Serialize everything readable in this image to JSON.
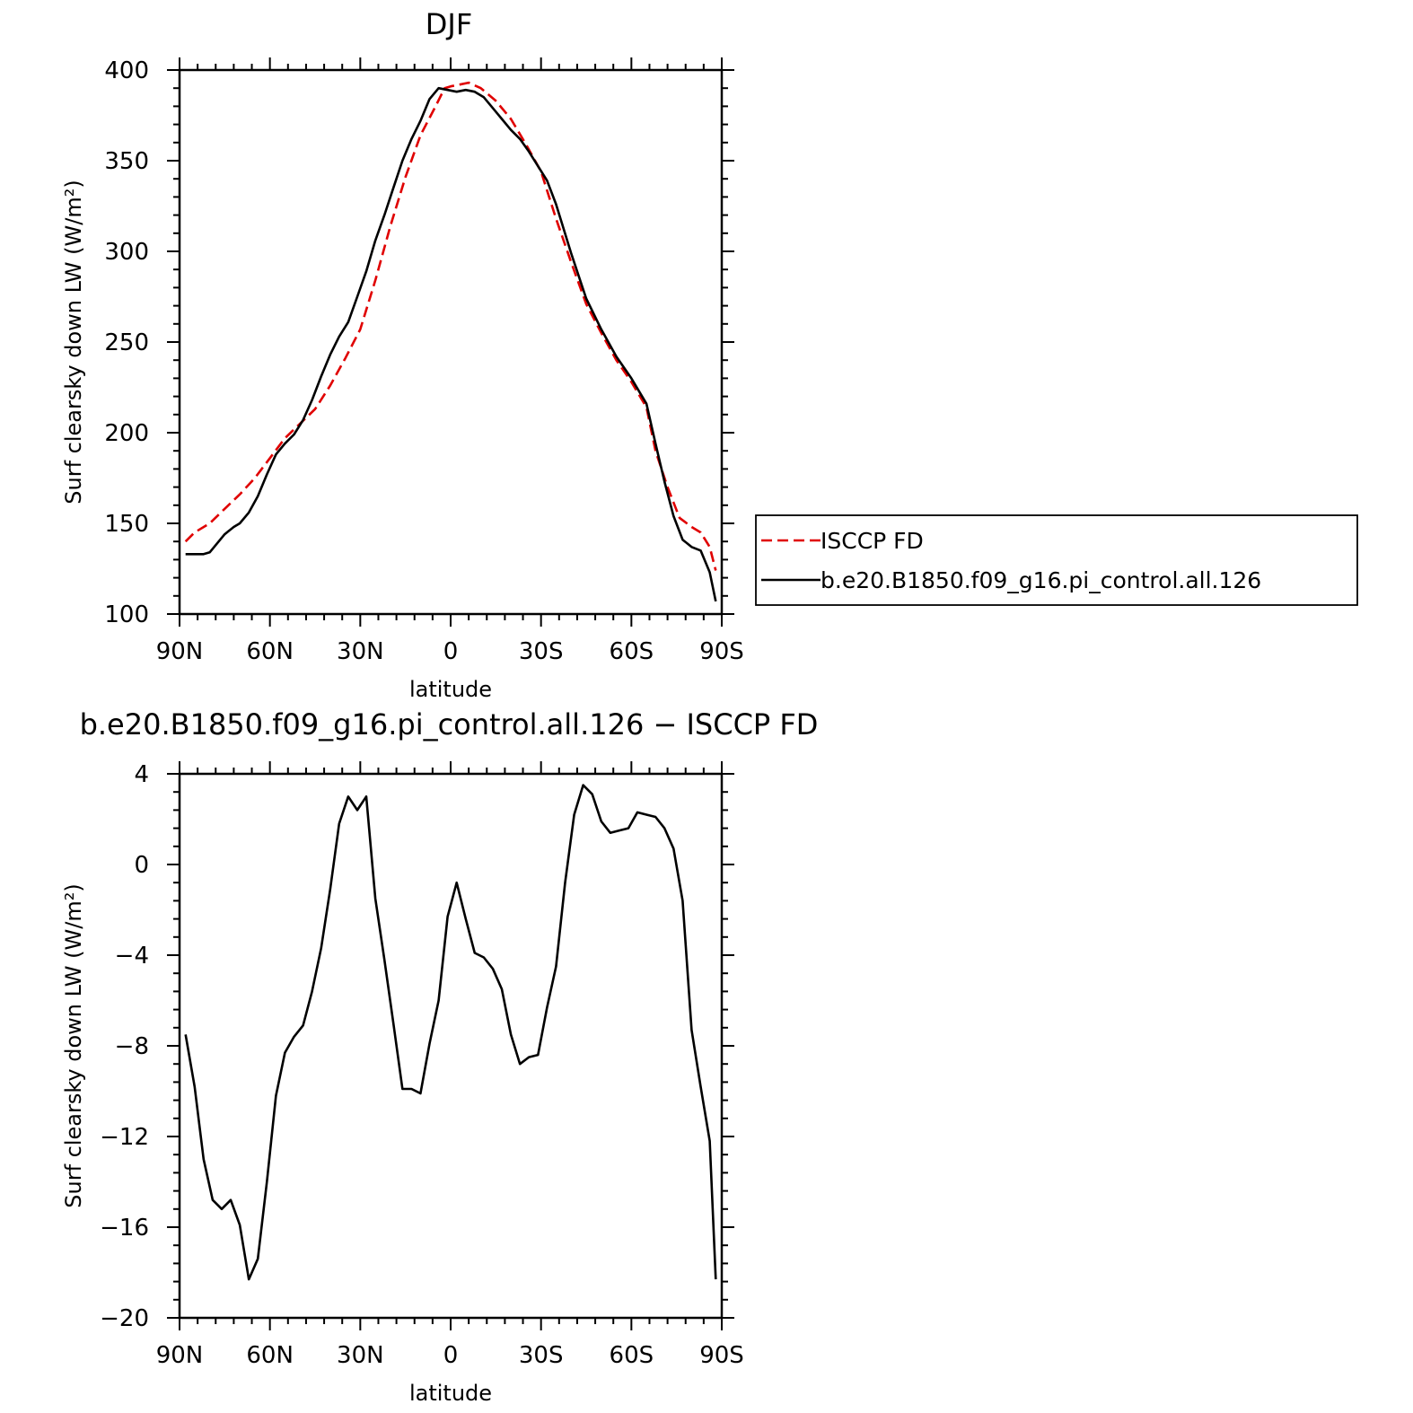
{
  "chart_data": [
    {
      "type": "line",
      "title": "DJF",
      "xlabel": "latitude",
      "ylabel": "Surf clearsky down LW (W/m²)",
      "xlim": [
        90,
        -90
      ],
      "ylim": [
        100,
        400
      ],
      "xticks": [
        90,
        60,
        30,
        0,
        -30,
        -60,
        -90
      ],
      "xtick_labels": [
        "90N",
        "60N",
        "30N",
        "0",
        "30S",
        "60S",
        "90S"
      ],
      "yticks": [
        100,
        150,
        200,
        250,
        300,
        350,
        400
      ],
      "ytick_labels": [
        "100",
        "150",
        "200",
        "250",
        "300",
        "350",
        "400"
      ],
      "legend_position": "right",
      "series": [
        {
          "name": "ISCCP FD",
          "color": "#e00000",
          "dash": "dashed",
          "x": [
            88,
            85,
            80,
            75,
            70,
            65,
            60,
            55,
            50,
            45,
            40,
            35,
            30,
            25,
            20,
            15,
            10,
            5,
            2,
            0,
            -3,
            -6,
            -10,
            -15,
            -20,
            -25,
            -30,
            -35,
            -40,
            -45,
            -50,
            -55,
            -60,
            -65,
            -68,
            -72,
            -76,
            -80,
            -83,
            -86,
            -88
          ],
          "y": [
            140,
            145,
            150,
            158,
            166,
            175,
            186,
            197,
            205,
            213,
            226,
            241,
            257,
            284,
            314,
            341,
            364,
            380,
            390,
            391,
            392,
            393,
            390,
            383,
            373,
            359,
            344,
            318,
            294,
            271,
            255,
            240,
            228,
            214,
            190,
            170,
            153,
            148,
            145,
            137,
            124
          ]
        },
        {
          "name": "b.e20.B1850.f09_g16.pi_control.all.126",
          "color": "#000000",
          "dash": "solid",
          "x": [
            88,
            85,
            82,
            80,
            78,
            75,
            72,
            70,
            67,
            64,
            61,
            58,
            55,
            52,
            49,
            46,
            43,
            40,
            37,
            34,
            31,
            28,
            25,
            22,
            19,
            16,
            13,
            10,
            7,
            4,
            1,
            -2,
            -5,
            -8,
            -11,
            -14,
            -17,
            -20,
            -23,
            -26,
            -29,
            -32,
            -35,
            -40,
            -45,
            -50,
            -55,
            -60,
            -65,
            -68,
            -71,
            -74,
            -77,
            -80,
            -83,
            -86,
            -88
          ],
          "y": [
            133,
            133,
            133,
            134,
            138,
            144,
            148,
            150,
            156,
            165,
            177,
            188,
            194,
            199,
            207,
            218,
            231,
            243,
            253,
            261,
            275,
            289,
            306,
            320,
            335,
            350,
            362,
            372,
            384,
            390,
            389,
            388,
            389,
            388,
            385,
            379,
            373,
            367,
            362,
            355,
            347,
            339,
            326,
            299,
            274,
            257,
            242,
            230,
            216,
            194,
            173,
            154,
            141,
            137,
            135,
            123,
            107
          ]
        }
      ]
    },
    {
      "type": "line",
      "title": "b.e20.B1850.f09_g16.pi_control.all.126 − ISCCP FD",
      "xlabel": "latitude",
      "ylabel": "Surf clearsky down LW (W/m²)",
      "xlim": [
        90,
        -90
      ],
      "ylim": [
        -20,
        4
      ],
      "xticks": [
        90,
        60,
        30,
        0,
        -30,
        -60,
        -90
      ],
      "xtick_labels": [
        "90N",
        "60N",
        "30N",
        "0",
        "30S",
        "60S",
        "90S"
      ],
      "yticks": [
        -20,
        -16,
        -12,
        -8,
        -4,
        0,
        4
      ],
      "ytick_labels": [
        "−20",
        "−16",
        "−12",
        "−8",
        "−4",
        "0",
        "4"
      ],
      "series": [
        {
          "color": "#000000",
          "dash": "solid",
          "x": [
            88,
            85,
            82,
            79,
            76,
            73,
            70,
            67,
            64,
            61,
            58,
            55,
            52,
            49,
            46,
            43,
            40,
            37,
            34,
            31,
            28,
            25,
            22,
            19,
            16,
            13,
            10,
            7,
            4,
            1,
            -2,
            -5,
            -8,
            -11,
            -14,
            -17,
            -20,
            -23,
            -26,
            -29,
            -32,
            -35,
            -38,
            -41,
            -44,
            -47,
            -50,
            -53,
            -56,
            -59,
            -62,
            -65,
            -68,
            -71,
            -74,
            -77,
            -80,
            -83,
            -86,
            -88
          ],
          "y": [
            -7.5,
            -9.8,
            -13.0,
            -14.8,
            -15.2,
            -14.8,
            -15.9,
            -18.3,
            -17.4,
            -14.0,
            -10.2,
            -8.3,
            -7.6,
            -7.1,
            -5.6,
            -3.7,
            -1.1,
            1.8,
            3.0,
            2.4,
            3.0,
            -1.5,
            -4.2,
            -7.0,
            -9.9,
            -9.9,
            -10.1,
            -7.9,
            -6.0,
            -2.3,
            -0.8,
            -2.4,
            -3.9,
            -4.1,
            -4.6,
            -5.5,
            -7.5,
            -8.8,
            -8.5,
            -8.4,
            -6.3,
            -4.5,
            -0.8,
            2.2,
            3.5,
            3.1,
            1.9,
            1.4,
            1.5,
            1.6,
            2.3,
            2.2,
            2.1,
            1.6,
            0.7,
            -1.6,
            -7.3,
            -9.8,
            -12.2,
            -18.3
          ]
        }
      ]
    }
  ]
}
